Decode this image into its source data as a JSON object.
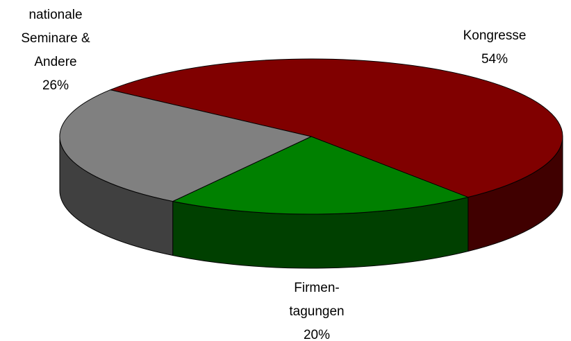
{
  "chart_data": {
    "type": "pie3d",
    "categories": [
      [
        "Kongresse"
      ],
      [
        "Firmen-",
        "tagungen"
      ],
      [
        "nationale",
        "Seminare &",
        "Andere"
      ]
    ],
    "values": [
      54,
      20,
      26
    ],
    "value_labels": [
      "54%",
      "20%",
      "26%"
    ],
    "colors": [
      "#800000",
      "#008000",
      "#808080"
    ],
    "side_colors": [
      "#400000",
      "#004000",
      "#404040"
    ]
  }
}
